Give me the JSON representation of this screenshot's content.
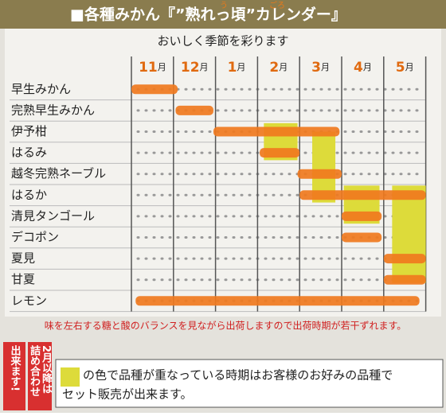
{
  "header": {
    "title": "■各種みかん『”熟れっ頃”カレンダー』",
    "ruby": [
      {
        "text": "う"
      },
      {
        "text": "ごろ"
      }
    ],
    "subtitle": "おいしく季節を彩ります"
  },
  "months": [
    {
      "num": "11",
      "unit": "月"
    },
    {
      "num": "12",
      "unit": "月"
    },
    {
      "num": "1",
      "unit": "月"
    },
    {
      "num": "2",
      "unit": "月"
    },
    {
      "num": "3",
      "unit": "月"
    },
    {
      "num": "4",
      "unit": "月"
    },
    {
      "num": "5",
      "unit": "月"
    }
  ],
  "rows": [
    {
      "name": "早生みかん",
      "start": 0,
      "end": 1.1
    },
    {
      "name": "完熟早生みかん",
      "start": 1.05,
      "end": 1.95
    },
    {
      "name": "伊予柑",
      "start": 1.95,
      "end": 4.95
    },
    {
      "name": "はるみ",
      "start": 3.05,
      "end": 4
    },
    {
      "name": "越冬完熟ネーブル",
      "start": 3.95,
      "end": 5
    },
    {
      "name": "はるか",
      "start": 4,
      "end": 7
    },
    {
      "name": "清見タンゴール",
      "start": 5,
      "end": 5.95
    },
    {
      "name": "デコポン",
      "start": 5,
      "end": 5.95
    },
    {
      "name": "夏見",
      "start": 6,
      "end": 7
    },
    {
      "name": "甘夏",
      "start": 6,
      "end": 7
    },
    {
      "name": "レモン",
      "start": 0.1,
      "end": 6.85
    }
  ],
  "highlights": [
    {
      "start": 3.15,
      "end": 3.95,
      "top": 2.1,
      "bottom": 3.85
    },
    {
      "start": 4.3,
      "end": 4.85,
      "top": 2.5,
      "bottom": 5.85
    },
    {
      "start": 5.05,
      "end": 5.9,
      "top": 5.05,
      "bottom": 6.85
    },
    {
      "start": 6.2,
      "end": 7,
      "top": 5.05,
      "bottom": 9.65
    }
  ],
  "note": "味を左右する糖と酸のバランスを見ながら出荷しますので出荷時期が若干ずれます。",
  "side_notes": [
    {
      "lines": [
        "出来ます!"
      ]
    },
    {
      "lines": [
        "詰め合わせ",
        "2月以降は"
      ]
    }
  ],
  "legend": {
    "lines": [
      "の色で品種が重なっている時期はお客様のお好みの品種で",
      "セット販売が出来ます。"
    ]
  }
}
